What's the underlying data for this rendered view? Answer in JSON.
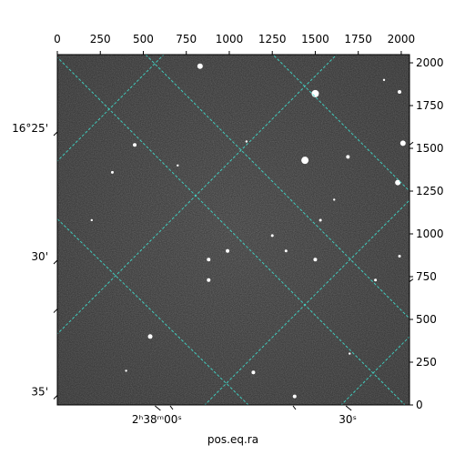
{
  "chart_data": {
    "type": "image",
    "xlabel": "pos.eq.ra",
    "ylabel": "",
    "xlim": [
      0,
      2048
    ],
    "ylim": [
      0,
      2048
    ],
    "pixel_axes": {
      "x_ticks": [
        0,
        250,
        500,
        750,
        1000,
        1250,
        1500,
        1750,
        2000
      ],
      "y_ticks": [
        0,
        250,
        500,
        750,
        1000,
        1250,
        1500,
        1750,
        2000
      ]
    },
    "world_axes": {
      "ra_ticks": [
        {
          "label": "2ʰ38ᵐ00ˢ",
          "x": 600
        },
        {
          "label": "30ˢ",
          "x": 1710
        }
      ],
      "dec_ticks": [
        {
          "label": "16°25'",
          "y": 1580
        },
        {
          "label": "30'",
          "y": 830
        },
        {
          "label": "35'",
          "y": 40
        }
      ]
    },
    "grid": true,
    "grid_color": "#40e0d0",
    "image_colormap": "gray",
    "stars": [
      {
        "x": 830,
        "y": 1980,
        "s": 3
      },
      {
        "x": 1500,
        "y": 1820,
        "s": 4
      },
      {
        "x": 1990,
        "y": 1830,
        "s": 2
      },
      {
        "x": 2010,
        "y": 1530,
        "s": 3
      },
      {
        "x": 1440,
        "y": 1430,
        "s": 4
      },
      {
        "x": 1690,
        "y": 1450,
        "s": 2
      },
      {
        "x": 1980,
        "y": 1300,
        "s": 3
      },
      {
        "x": 450,
        "y": 1520,
        "s": 2
      },
      {
        "x": 320,
        "y": 1360,
        "s": 1.5
      },
      {
        "x": 1530,
        "y": 1080,
        "s": 1.5
      },
      {
        "x": 1250,
        "y": 990,
        "s": 1.5
      },
      {
        "x": 990,
        "y": 900,
        "s": 2
      },
      {
        "x": 1330,
        "y": 900,
        "s": 1.5
      },
      {
        "x": 1500,
        "y": 850,
        "s": 2
      },
      {
        "x": 880,
        "y": 850,
        "s": 2
      },
      {
        "x": 880,
        "y": 730,
        "s": 2
      },
      {
        "x": 1990,
        "y": 870,
        "s": 1.5
      },
      {
        "x": 1850,
        "y": 730,
        "s": 1.5
      },
      {
        "x": 540,
        "y": 400,
        "s": 2.5
      },
      {
        "x": 1140,
        "y": 190,
        "s": 2
      },
      {
        "x": 1380,
        "y": 50,
        "s": 2
      },
      {
        "x": 200,
        "y": 1080,
        "s": 1.2
      },
      {
        "x": 1610,
        "y": 1200,
        "s": 1.2
      },
      {
        "x": 1100,
        "y": 1540,
        "s": 1.2
      },
      {
        "x": 1900,
        "y": 1900,
        "s": 1.2
      },
      {
        "x": 700,
        "y": 1400,
        "s": 1.2
      },
      {
        "x": 1700,
        "y": 300,
        "s": 1.2
      },
      {
        "x": 400,
        "y": 200,
        "s": 1.2
      }
    ]
  }
}
